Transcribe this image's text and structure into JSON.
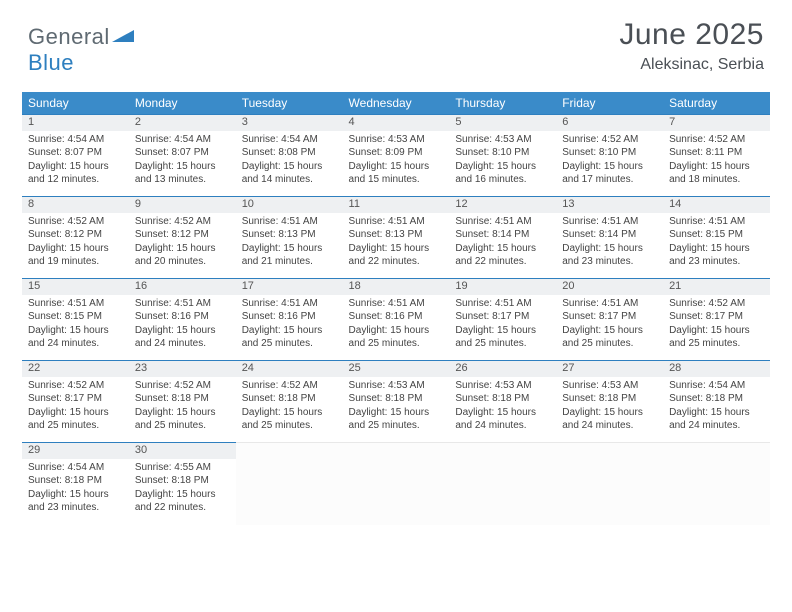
{
  "brand": {
    "part1": "General",
    "part2": "Blue"
  },
  "title": "June 2025",
  "location": "Aleksinac, Serbia",
  "colors": {
    "header_bg": "#3a8bc9",
    "divider": "#2e7fbf",
    "daynum_bg": "#eef0f2",
    "text": "#444444",
    "brand_gray": "#5f6a72",
    "brand_blue": "#2e7fbf"
  },
  "day_headers": [
    "Sunday",
    "Monday",
    "Tuesday",
    "Wednesday",
    "Thursday",
    "Friday",
    "Saturday"
  ],
  "weeks": [
    [
      {
        "n": "1",
        "sr": "4:54 AM",
        "ss": "8:07 PM",
        "dl": "15 hours and 12 minutes."
      },
      {
        "n": "2",
        "sr": "4:54 AM",
        "ss": "8:07 PM",
        "dl": "15 hours and 13 minutes."
      },
      {
        "n": "3",
        "sr": "4:54 AM",
        "ss": "8:08 PM",
        "dl": "15 hours and 14 minutes."
      },
      {
        "n": "4",
        "sr": "4:53 AM",
        "ss": "8:09 PM",
        "dl": "15 hours and 15 minutes."
      },
      {
        "n": "5",
        "sr": "4:53 AM",
        "ss": "8:10 PM",
        "dl": "15 hours and 16 minutes."
      },
      {
        "n": "6",
        "sr": "4:52 AM",
        "ss": "8:10 PM",
        "dl": "15 hours and 17 minutes."
      },
      {
        "n": "7",
        "sr": "4:52 AM",
        "ss": "8:11 PM",
        "dl": "15 hours and 18 minutes."
      }
    ],
    [
      {
        "n": "8",
        "sr": "4:52 AM",
        "ss": "8:12 PM",
        "dl": "15 hours and 19 minutes."
      },
      {
        "n": "9",
        "sr": "4:52 AM",
        "ss": "8:12 PM",
        "dl": "15 hours and 20 minutes."
      },
      {
        "n": "10",
        "sr": "4:51 AM",
        "ss": "8:13 PM",
        "dl": "15 hours and 21 minutes."
      },
      {
        "n": "11",
        "sr": "4:51 AM",
        "ss": "8:13 PM",
        "dl": "15 hours and 22 minutes."
      },
      {
        "n": "12",
        "sr": "4:51 AM",
        "ss": "8:14 PM",
        "dl": "15 hours and 22 minutes."
      },
      {
        "n": "13",
        "sr": "4:51 AM",
        "ss": "8:14 PM",
        "dl": "15 hours and 23 minutes."
      },
      {
        "n": "14",
        "sr": "4:51 AM",
        "ss": "8:15 PM",
        "dl": "15 hours and 23 minutes."
      }
    ],
    [
      {
        "n": "15",
        "sr": "4:51 AM",
        "ss": "8:15 PM",
        "dl": "15 hours and 24 minutes."
      },
      {
        "n": "16",
        "sr": "4:51 AM",
        "ss": "8:16 PM",
        "dl": "15 hours and 24 minutes."
      },
      {
        "n": "17",
        "sr": "4:51 AM",
        "ss": "8:16 PM",
        "dl": "15 hours and 25 minutes."
      },
      {
        "n": "18",
        "sr": "4:51 AM",
        "ss": "8:16 PM",
        "dl": "15 hours and 25 minutes."
      },
      {
        "n": "19",
        "sr": "4:51 AM",
        "ss": "8:17 PM",
        "dl": "15 hours and 25 minutes."
      },
      {
        "n": "20",
        "sr": "4:51 AM",
        "ss": "8:17 PM",
        "dl": "15 hours and 25 minutes."
      },
      {
        "n": "21",
        "sr": "4:52 AM",
        "ss": "8:17 PM",
        "dl": "15 hours and 25 minutes."
      }
    ],
    [
      {
        "n": "22",
        "sr": "4:52 AM",
        "ss": "8:17 PM",
        "dl": "15 hours and 25 minutes."
      },
      {
        "n": "23",
        "sr": "4:52 AM",
        "ss": "8:18 PM",
        "dl": "15 hours and 25 minutes."
      },
      {
        "n": "24",
        "sr": "4:52 AM",
        "ss": "8:18 PM",
        "dl": "15 hours and 25 minutes."
      },
      {
        "n": "25",
        "sr": "4:53 AM",
        "ss": "8:18 PM",
        "dl": "15 hours and 25 minutes."
      },
      {
        "n": "26",
        "sr": "4:53 AM",
        "ss": "8:18 PM",
        "dl": "15 hours and 24 minutes."
      },
      {
        "n": "27",
        "sr": "4:53 AM",
        "ss": "8:18 PM",
        "dl": "15 hours and 24 minutes."
      },
      {
        "n": "28",
        "sr": "4:54 AM",
        "ss": "8:18 PM",
        "dl": "15 hours and 24 minutes."
      }
    ],
    [
      {
        "n": "29",
        "sr": "4:54 AM",
        "ss": "8:18 PM",
        "dl": "15 hours and 23 minutes."
      },
      {
        "n": "30",
        "sr": "4:55 AM",
        "ss": "8:18 PM",
        "dl": "15 hours and 22 minutes."
      },
      null,
      null,
      null,
      null,
      null
    ]
  ],
  "labels": {
    "sunrise": "Sunrise: ",
    "sunset": "Sunset: ",
    "daylight": "Daylight: "
  }
}
